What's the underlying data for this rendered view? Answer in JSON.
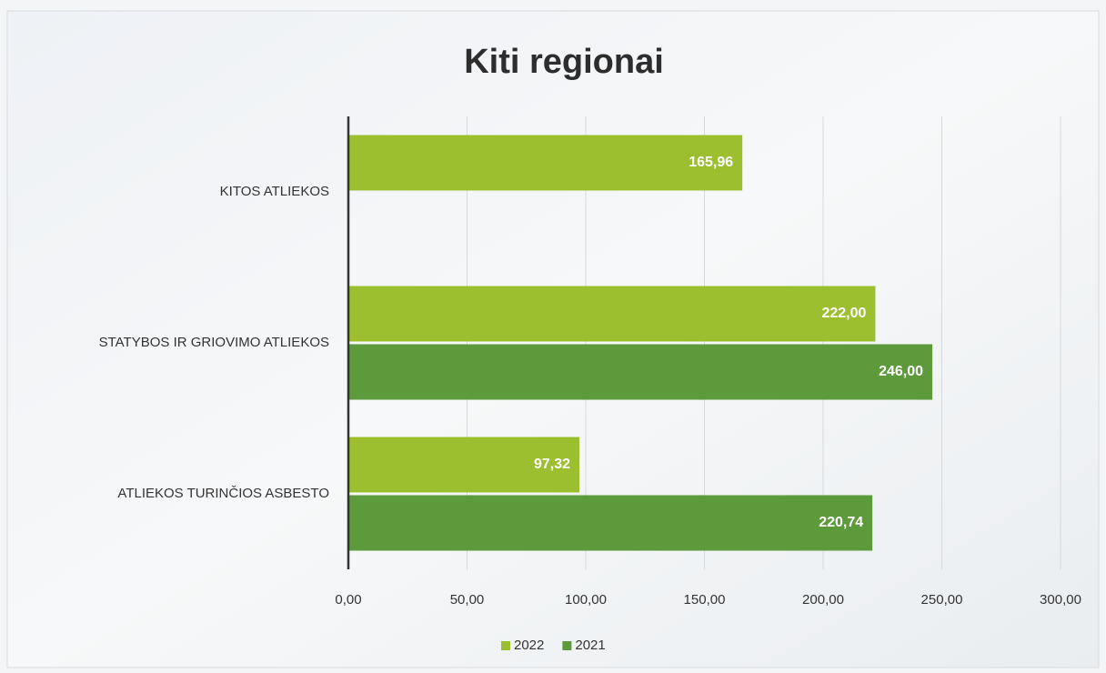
{
  "chart_data": {
    "type": "hbar",
    "title": "Kiti regionai",
    "categories": [
      "KITOS ATLIEKOS",
      "STATYBOS IR GRIOVIMO ATLIEKOS",
      "ATLIEKOS TURINČIOS ASBESTO"
    ],
    "series": [
      {
        "name": "2022",
        "color": "#9cbf2f",
        "values": [
          165.96,
          222.0,
          97.32
        ],
        "value_labels": [
          "165,96",
          "222,00",
          "97,32"
        ]
      },
      {
        "name": "2021",
        "color": "#5c9a3c",
        "values": [
          null,
          246.0,
          220.74
        ],
        "value_labels": [
          null,
          "246,00",
          "220,74"
        ]
      }
    ],
    "xlim": [
      0,
      300
    ],
    "xticks": [
      {
        "value": 0,
        "label": "0,00"
      },
      {
        "value": 50,
        "label": "50,00"
      },
      {
        "value": 100,
        "label": "100,00"
      },
      {
        "value": 150,
        "label": "150,00"
      },
      {
        "value": 200,
        "label": "200,00"
      },
      {
        "value": 250,
        "label": "250,00"
      },
      {
        "value": 300,
        "label": "300,00"
      }
    ],
    "grid": true,
    "legend": "bottom"
  }
}
